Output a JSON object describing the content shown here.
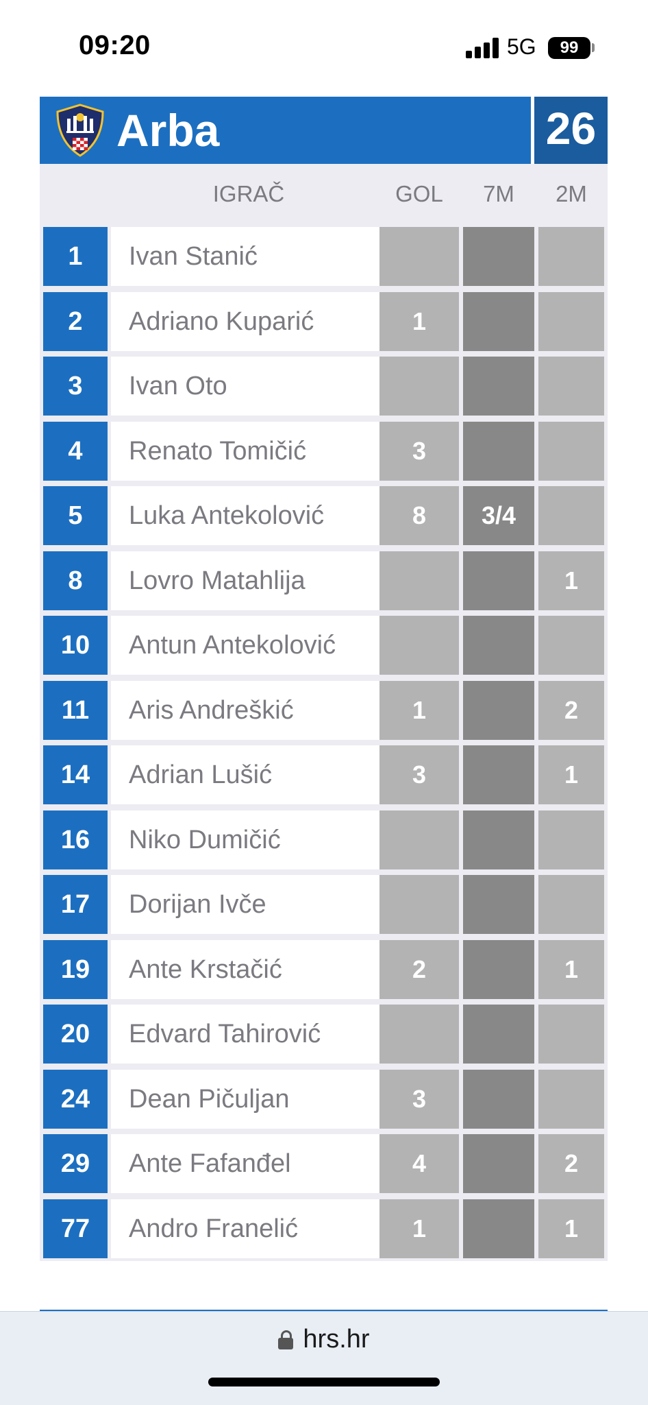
{
  "status": {
    "time": "09:20",
    "network": "5G",
    "battery": "99"
  },
  "team": {
    "name": "Arba",
    "score": "26",
    "logo_icon": "club-crest-icon"
  },
  "table": {
    "columns": {
      "player": "IGRAČ",
      "goals": "GOL",
      "seven_m": "7M",
      "two_min": "2M"
    },
    "rows": [
      {
        "number": "1",
        "name": "Ivan Stanić",
        "gol": "",
        "seven_m": "",
        "two_min": ""
      },
      {
        "number": "2",
        "name": "Adriano Kuparić",
        "gol": "1",
        "seven_m": "",
        "two_min": ""
      },
      {
        "number": "3",
        "name": "Ivan Oto",
        "gol": "",
        "seven_m": "",
        "two_min": ""
      },
      {
        "number": "4",
        "name": "Renato Tomičić",
        "gol": "3",
        "seven_m": "",
        "two_min": ""
      },
      {
        "number": "5",
        "name": "Luka Antekolović",
        "gol": "8",
        "seven_m": "3/4",
        "two_min": ""
      },
      {
        "number": "8",
        "name": "Lovro Matahlija",
        "gol": "",
        "seven_m": "",
        "two_min": "1"
      },
      {
        "number": "10",
        "name": "Antun Antekolović",
        "gol": "",
        "seven_m": "",
        "two_min": ""
      },
      {
        "number": "11",
        "name": "Aris Andreškić",
        "gol": "1",
        "seven_m": "",
        "two_min": "2"
      },
      {
        "number": "14",
        "name": "Adrian Lušić",
        "gol": "3",
        "seven_m": "",
        "two_min": "1"
      },
      {
        "number": "16",
        "name": "Niko Dumičić",
        "gol": "",
        "seven_m": "",
        "two_min": ""
      },
      {
        "number": "17",
        "name": "Dorijan Ivče",
        "gol": "",
        "seven_m": "",
        "two_min": ""
      },
      {
        "number": "19",
        "name": "Ante Krstačić",
        "gol": "2",
        "seven_m": "",
        "two_min": "1"
      },
      {
        "number": "20",
        "name": "Edvard Tahirović",
        "gol": "",
        "seven_m": "",
        "two_min": ""
      },
      {
        "number": "24",
        "name": "Dean Pičuljan",
        "gol": "3",
        "seven_m": "",
        "two_min": ""
      },
      {
        "number": "29",
        "name": "Ante Fafanđel",
        "gol": "4",
        "seven_m": "",
        "two_min": "2"
      },
      {
        "number": "77",
        "name": "Andro Franelić",
        "gol": "1",
        "seven_m": "",
        "two_min": "1"
      }
    ]
  },
  "browser": {
    "url": "hrs.hr"
  },
  "colors": {
    "team_blue": "#1c6fc0",
    "score_blue": "#1a5c9e",
    "gol_gray": "#b3b3b3",
    "seven_m_gray": "#888888"
  }
}
